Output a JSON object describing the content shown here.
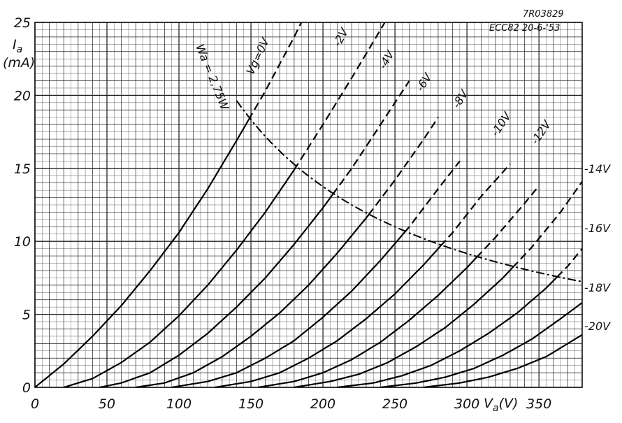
{
  "chart_data": {
    "type": "line",
    "title": "",
    "xlabel": "V_a (V)",
    "ylabel": "I_a (mA)",
    "xlabel_parts": {
      "main": "V",
      "sub": "a",
      "unit": "(V)"
    },
    "ylabel_parts": {
      "main": "I",
      "sub": "a",
      "unit": "(mA)"
    },
    "xlim": [
      0,
      380
    ],
    "ylim": [
      0,
      25
    ],
    "x_ticks": [
      0,
      50,
      100,
      150,
      200,
      250,
      300,
      350
    ],
    "y_ticks": [
      0,
      5,
      10,
      15,
      20,
      25
    ],
    "x_tick_labels": [
      "0",
      "50",
      "100",
      "150",
      "200",
      "250",
      "300",
      "350"
    ],
    "y_tick_labels": [
      "0",
      "5",
      "10",
      "15",
      "20",
      "25"
    ],
    "grid": true,
    "stamp_lines": [
      "7R03829",
      "ECC82  20-6-'53"
    ],
    "power_limit_label": "Wa = 2,75W",
    "power_limit_watts": 2.75,
    "series": [
      {
        "name": "Vg=0V",
        "label": "Vg=0V",
        "points": [
          [
            0,
            0
          ],
          [
            20,
            1.6
          ],
          [
            40,
            3.5
          ],
          [
            60,
            5.6
          ],
          [
            80,
            8
          ],
          [
            100,
            10.6
          ],
          [
            120,
            13.6
          ],
          [
            140,
            16.9
          ],
          [
            160,
            20.3
          ],
          [
            180,
            24
          ],
          [
            185,
            25
          ]
        ]
      },
      {
        "name": "-2V",
        "label": "-2V",
        "points": [
          [
            20,
            0
          ],
          [
            40,
            0.6
          ],
          [
            60,
            1.7
          ],
          [
            80,
            3.1
          ],
          [
            100,
            4.9
          ],
          [
            120,
            7
          ],
          [
            140,
            9.4
          ],
          [
            160,
            12
          ],
          [
            180,
            14.9
          ],
          [
            200,
            18
          ],
          [
            220,
            21.2
          ],
          [
            243,
            25
          ]
        ]
      },
      {
        "name": "-4V",
        "label": "-4V",
        "points": [
          [
            45,
            0
          ],
          [
            60,
            0.3
          ],
          [
            80,
            1
          ],
          [
            100,
            2.2
          ],
          [
            120,
            3.7
          ],
          [
            140,
            5.5
          ],
          [
            160,
            7.5
          ],
          [
            180,
            9.8
          ],
          [
            200,
            12.3
          ],
          [
            220,
            15
          ],
          [
            240,
            18
          ],
          [
            260,
            21
          ]
        ]
      },
      {
        "name": "-6V",
        "label": "-6V",
        "points": [
          [
            70,
            0
          ],
          [
            90,
            0.3
          ],
          [
            110,
            1
          ],
          [
            130,
            2.1
          ],
          [
            150,
            3.5
          ],
          [
            170,
            5.1
          ],
          [
            190,
            7
          ],
          [
            210,
            9.2
          ],
          [
            230,
            11.6
          ],
          [
            250,
            14.2
          ],
          [
            270,
            17
          ],
          [
            280,
            18.5
          ]
        ]
      },
      {
        "name": "-8V",
        "label": "-8V",
        "points": [
          [
            95,
            0
          ],
          [
            120,
            0.4
          ],
          [
            140,
            1
          ],
          [
            160,
            2
          ],
          [
            180,
            3.2
          ],
          [
            200,
            4.8
          ],
          [
            220,
            6.6
          ],
          [
            240,
            8.7
          ],
          [
            260,
            11
          ],
          [
            280,
            13.6
          ],
          [
            295,
            15.5
          ]
        ]
      },
      {
        "name": "-10V",
        "label": "-10V",
        "points": [
          [
            125,
            0
          ],
          [
            150,
            0.4
          ],
          [
            170,
            1
          ],
          [
            190,
            2
          ],
          [
            210,
            3.2
          ],
          [
            230,
            4.7
          ],
          [
            250,
            6.4
          ],
          [
            270,
            8.4
          ],
          [
            290,
            10.6
          ],
          [
            310,
            13.1
          ],
          [
            330,
            15.3
          ]
        ]
      },
      {
        "name": "-12V",
        "label": "-12V",
        "points": [
          [
            155,
            0
          ],
          [
            180,
            0.4
          ],
          [
            200,
            1
          ],
          [
            220,
            1.9
          ],
          [
            240,
            3.1
          ],
          [
            260,
            4.6
          ],
          [
            280,
            6.3
          ],
          [
            300,
            8.2
          ],
          [
            320,
            10.3
          ],
          [
            340,
            12.6
          ],
          [
            350,
            13.8
          ]
        ]
      },
      {
        "name": "-14V",
        "label": "-14V",
        "points": [
          [
            180,
            0
          ],
          [
            205,
            0.4
          ],
          [
            225,
            0.9
          ],
          [
            245,
            1.7
          ],
          [
            265,
            2.8
          ],
          [
            285,
            4.1
          ],
          [
            305,
            5.7
          ],
          [
            325,
            7.5
          ],
          [
            345,
            9.6
          ],
          [
            365,
            12
          ],
          [
            380,
            14.1
          ]
        ]
      },
      {
        "name": "-16V",
        "label": "-16V",
        "points": [
          [
            210,
            0
          ],
          [
            235,
            0.3
          ],
          [
            255,
            0.8
          ],
          [
            275,
            1.5
          ],
          [
            295,
            2.5
          ],
          [
            315,
            3.7
          ],
          [
            335,
            5.1
          ],
          [
            355,
            6.8
          ],
          [
            370,
            8.3
          ],
          [
            380,
            9.5
          ]
        ]
      },
      {
        "name": "-18V",
        "label": "-18V",
        "points": [
          [
            240,
            0
          ],
          [
            265,
            0.3
          ],
          [
            285,
            0.7
          ],
          [
            305,
            1.3
          ],
          [
            325,
            2.2
          ],
          [
            345,
            3.3
          ],
          [
            365,
            4.7
          ],
          [
            380,
            5.8
          ]
        ]
      },
      {
        "name": "-20V",
        "label": "-20V",
        "points": [
          [
            270,
            0
          ],
          [
            295,
            0.3
          ],
          [
            315,
            0.7
          ],
          [
            335,
            1.3
          ],
          [
            355,
            2.1
          ],
          [
            370,
            3
          ],
          [
            380,
            3.6
          ]
        ]
      }
    ]
  }
}
